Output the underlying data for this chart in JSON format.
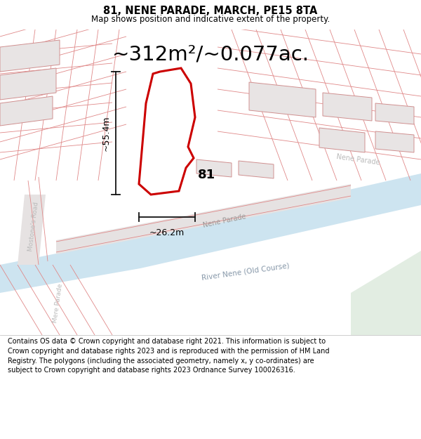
{
  "title_line1": "81, NENE PARADE, MARCH, PE15 8TA",
  "title_line2": "Map shows position and indicative extent of the property.",
  "area_text": "~312m²/~0.077ac.",
  "dim_width": "~26.2m",
  "dim_height": "~55.4m",
  "label_number": "81",
  "river_label": "River Nene (Old Course)",
  "road_label_nene_low": "Nene Parade",
  "road_label_nene_high": "Nene Parade",
  "road_label_mostone": "Mostone's Road",
  "road_label_mere": "Mere Parade",
  "footer_text": "Contains OS data © Crown copyright and database right 2021. This information is subject to Crown copyright and database rights 2023 and is reproduced with the permission of HM Land Registry. The polygons (including the associated geometry, namely x, y co-ordinates) are subject to Crown copyright and database rights 2023 Ordnance Survey 100026316.",
  "map_bg": "#f2f0f0",
  "river_color": "#cde4f0",
  "green_color": "#e2ede2",
  "plot_outline_color": "#cc0000",
  "street_line_color": "#e08888",
  "building_outline_color": "#d09090",
  "building_fill": "#e8e4e4",
  "dim_line_color": "#111111",
  "title_fontsize": 10.5,
  "subtitle_fontsize": 8.5,
  "area_fontsize": 21,
  "number_fontsize": 13,
  "footer_fontsize": 7.0
}
